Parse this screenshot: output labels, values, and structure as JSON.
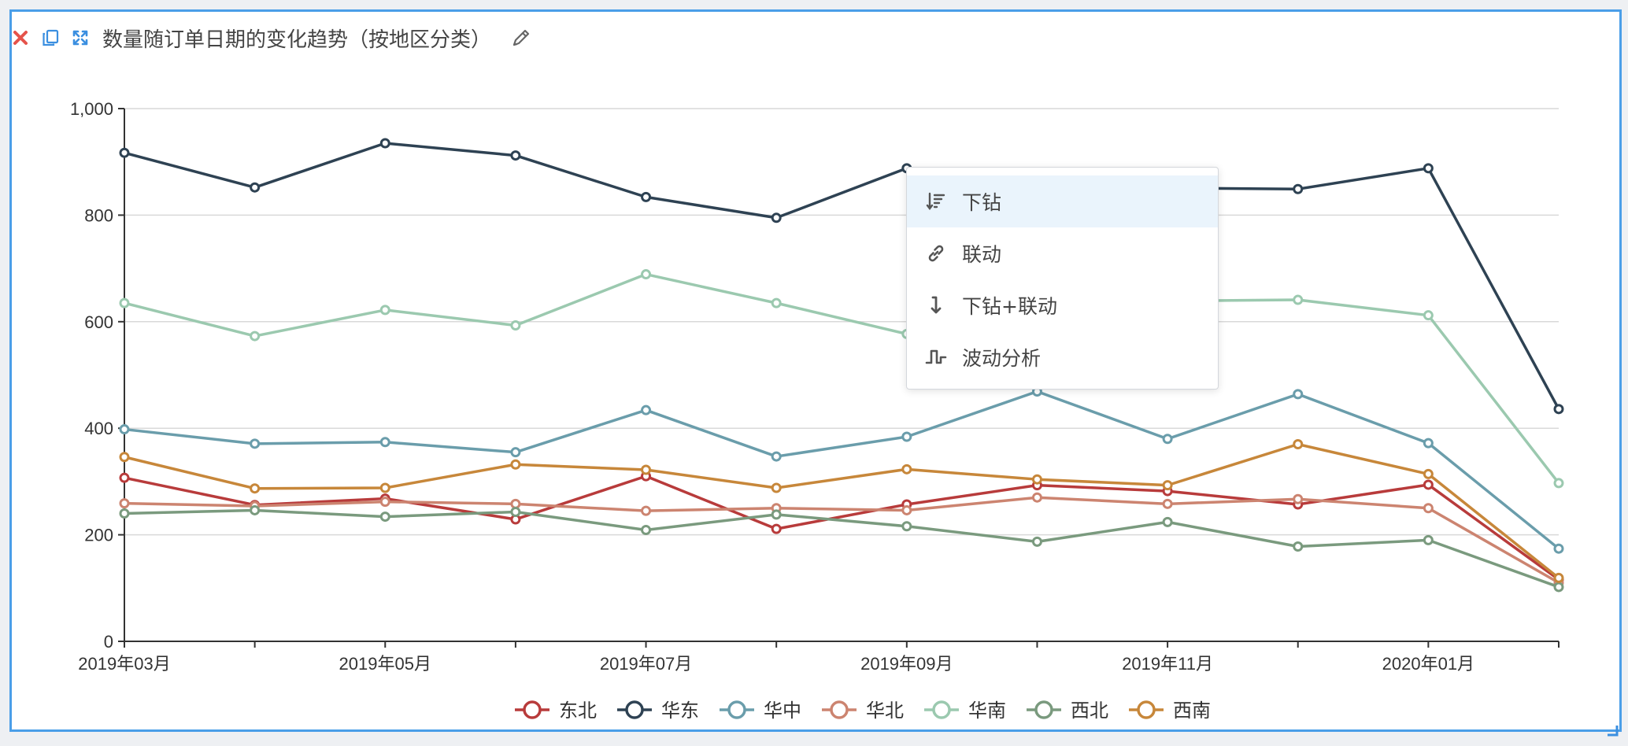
{
  "toolbar": {
    "title": "数量随订单日期的变化趋势（按地区分类）",
    "icons": [
      "close-icon",
      "copy-icon",
      "expand-icon",
      "edit-pencil-icon"
    ],
    "close_color": "#e5534b",
    "icon_color": "#3b8fe0"
  },
  "context_menu": {
    "items": [
      {
        "label": "下钻",
        "icon": "drill-down-sort-icon",
        "active": true
      },
      {
        "label": "联动",
        "icon": "link-icon",
        "active": false
      },
      {
        "label": "下钻+联动",
        "icon": "drill-link-arrow-icon",
        "active": false
      },
      {
        "label": "波动分析",
        "icon": "fluctuation-step-icon",
        "active": false
      }
    ]
  },
  "chart_data": {
    "type": "line",
    "title": "",
    "xlabel": "",
    "ylabel": "",
    "ylim": [
      0,
      1000
    ],
    "yticks": [
      "0",
      "200",
      "400",
      "600",
      "800",
      "1,000"
    ],
    "x": [
      "2019年03月",
      "2019年04月",
      "2019年05月",
      "2019年06月",
      "2019年07月",
      "2019年08月",
      "2019年09月",
      "2019年10月",
      "2019年11月",
      "2019年12月",
      "2020年01月",
      "2020年02月"
    ],
    "xtick_labels": [
      "2019年03月",
      "2019年05月",
      "2019年07月",
      "2019年09月",
      "2019年11月",
      "2020年01月"
    ],
    "grid": true,
    "legend_position": "bottom",
    "series": [
      {
        "name": "东北",
        "color": "#b83b3b",
        "values": [
          307,
          256,
          268,
          229,
          310,
          211,
          257,
          293,
          282,
          257,
          294,
          116
        ]
      },
      {
        "name": "华东",
        "color": "#2e4253",
        "values": [
          917,
          852,
          935,
          912,
          834,
          795,
          888,
          858,
          851,
          849,
          888,
          436
        ]
      },
      {
        "name": "华中",
        "color": "#6a9dab",
        "values": [
          398,
          371,
          374,
          355,
          434,
          347,
          384,
          469,
          380,
          464,
          372,
          174
        ]
      },
      {
        "name": "华北",
        "color": "#cc8470",
        "values": [
          259,
          254,
          262,
          258,
          245,
          250,
          246,
          270,
          258,
          267,
          250,
          110
        ]
      },
      {
        "name": "华南",
        "color": "#9bc9af",
        "values": [
          635,
          573,
          622,
          593,
          689,
          635,
          577,
          628,
          639,
          641,
          612,
          297
        ]
      },
      {
        "name": "西北",
        "color": "#7a9a7e",
        "values": [
          240,
          246,
          234,
          243,
          209,
          238,
          216,
          187,
          224,
          178,
          190,
          102
        ]
      },
      {
        "name": "西南",
        "color": "#c7873a",
        "values": [
          346,
          287,
          288,
          332,
          322,
          288,
          323,
          304,
          293,
          370,
          314,
          119
        ]
      }
    ]
  }
}
